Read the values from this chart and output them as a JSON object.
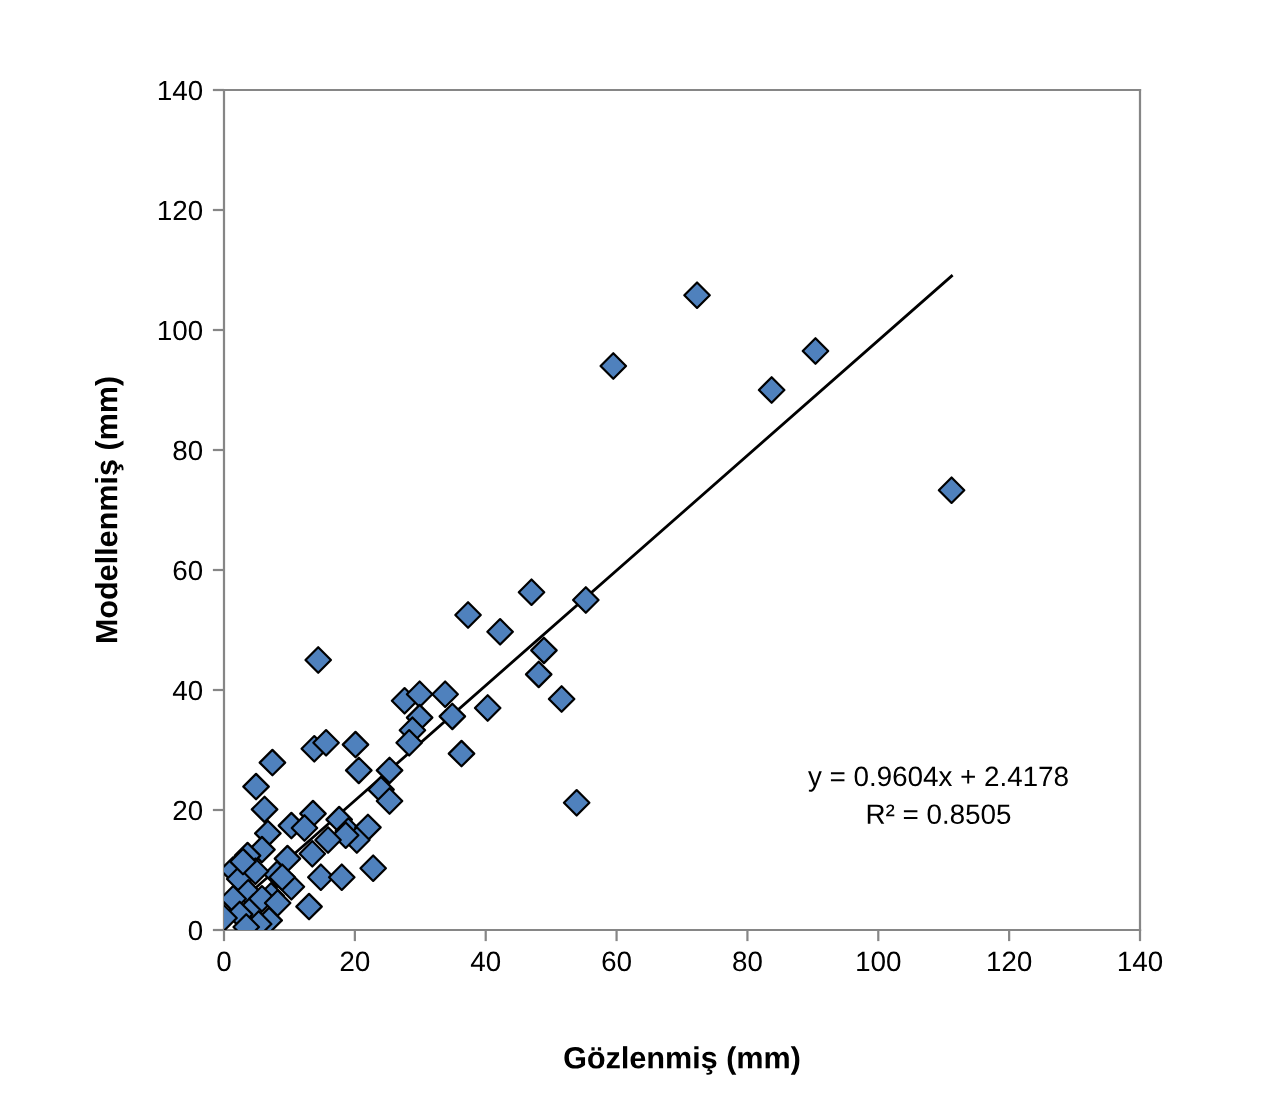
{
  "chart_data": {
    "type": "scatter",
    "xlabel": "Gözlenmiş (mm)",
    "ylabel": "Modellenmiş (mm)",
    "xlim": [
      0,
      140
    ],
    "ylim": [
      0,
      140
    ],
    "xticks": [
      0,
      20,
      40,
      60,
      80,
      100,
      120,
      140
    ],
    "yticks": [
      0,
      20,
      40,
      60,
      80,
      100,
      120,
      140
    ],
    "grid": false,
    "series": [
      {
        "marker": "diamond",
        "color": "#4f81bd",
        "x": [
          72.3,
          59.5,
          83.7,
          90.4,
          111.2,
          47,
          55.3,
          42.2,
          48.9,
          48.1,
          51.6,
          40.3,
          53.9,
          37.3,
          14.4,
          27.6,
          29.9,
          33.8,
          29.9,
          34.9,
          28.8,
          28.3,
          36.3,
          13.8,
          15.6,
          20.1,
          20.6,
          25.3,
          24,
          25.3,
          7.4,
          4.9,
          6.2,
          6.7,
          10.3,
          13.6,
          12.3,
          17.6,
          19,
          22,
          20.3,
          18.6,
          15.9,
          5.8,
          3.6,
          13.5,
          9.7,
          8.1,
          14.8,
          18,
          22.8,
          1.4,
          2.4,
          10.3,
          13,
          6.9,
          3.7,
          4.5,
          7.2,
          8.9,
          4.8,
          2.9,
          1.4,
          5.8,
          2.4,
          0,
          5.3,
          3.4,
          8.2
        ],
        "values": [
          105.8,
          94,
          90,
          96.5,
          73.3,
          56.3,
          55,
          49.7,
          46.6,
          42.6,
          38.5,
          37,
          21.2,
          52.5,
          45,
          38.2,
          39.3,
          39.3,
          35.4,
          35.6,
          33.3,
          31.2,
          29.4,
          30.2,
          31.2,
          30.9,
          26.6,
          26.6,
          23.4,
          21.5,
          27.9,
          23.9,
          20.1,
          16.1,
          17.4,
          19.4,
          17,
          18.4,
          16.5,
          17.1,
          15,
          15.8,
          15,
          13.4,
          12.4,
          12.7,
          11.9,
          9.3,
          8.8,
          8.8,
          10.3,
          10,
          8.5,
          7.2,
          3.9,
          1.6,
          6.2,
          3.8,
          5.7,
          8.8,
          9.8,
          11.4,
          5.2,
          5.2,
          2.6,
          2,
          1,
          0.5,
          4.5
        ]
      },
      {
        "type": "line",
        "color": "#000000",
        "x": [
          0,
          111.2
        ],
        "values": [
          2.4,
          109
        ]
      }
    ],
    "annotations": [
      "y = 0.9604x + 2.4178",
      "R² = 0.8505"
    ]
  }
}
